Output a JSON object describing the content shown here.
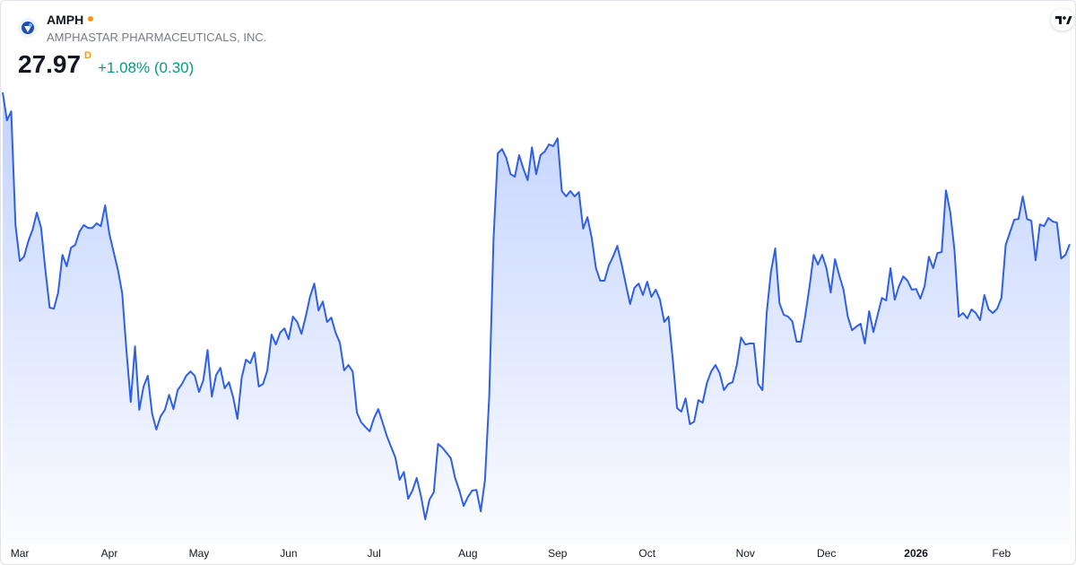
{
  "chart_data": {
    "type": "line",
    "title": "AMPH",
    "subtitle": "AMPHASTAR PHARMACEUTICALS, INC.",
    "price": "27.97",
    "interval": "D",
    "change": "+1.08% (0.30)",
    "color": "#2f5fe6",
    "categories": [
      null,
      null,
      null,
      null,
      "Mar",
      null,
      null,
      null,
      null,
      null,
      null,
      null,
      null,
      null,
      null,
      null,
      null,
      null,
      null,
      null,
      null,
      null,
      null,
      null,
      null,
      "Apr",
      null,
      null,
      null,
      null,
      null,
      null,
      null,
      null,
      null,
      null,
      null,
      null,
      null,
      null,
      null,
      null,
      null,
      null,
      null,
      null,
      "May",
      null,
      null,
      null,
      null,
      null,
      null,
      null,
      null,
      null,
      null,
      null,
      null,
      null,
      null,
      null,
      null,
      null,
      null,
      null,
      null,
      "Jun",
      null,
      null,
      null,
      null,
      null,
      null,
      null,
      null,
      null,
      null,
      null,
      null,
      null,
      null,
      null,
      null,
      null,
      null,
      null,
      "Jul",
      null,
      null,
      null,
      null,
      null,
      null,
      null,
      null,
      null,
      null,
      null,
      null,
      null,
      null,
      null,
      null,
      null,
      null,
      null,
      null,
      null,
      "Aug",
      null,
      null,
      null,
      null,
      null,
      null,
      null,
      null,
      null,
      null,
      null,
      null,
      null,
      null,
      null,
      null,
      null,
      null,
      null,
      null,
      "Sep",
      null,
      null,
      null,
      null,
      null,
      null,
      null,
      null,
      null,
      null,
      null,
      null,
      null,
      null,
      null,
      null,
      null,
      null,
      null,
      null,
      "Oct",
      null,
      null,
      null,
      null,
      null,
      null,
      null,
      null,
      null,
      null,
      null,
      null,
      null,
      null,
      null,
      null,
      null,
      null,
      null,
      null,
      null,
      null,
      "Nov",
      null,
      null,
      null,
      null,
      null,
      null,
      null,
      null,
      null,
      null,
      null,
      null,
      null,
      null,
      null,
      null,
      null,
      null,
      "Dec",
      null,
      null,
      null,
      null,
      null,
      null,
      null,
      null,
      null,
      null,
      null,
      null,
      null,
      null,
      null,
      null,
      null,
      null,
      null,
      null,
      "2026",
      null,
      null,
      null,
      null,
      null,
      null,
      null,
      null,
      null,
      null,
      null,
      null,
      null,
      null,
      null,
      null,
      null,
      null,
      null,
      "Feb",
      null,
      null,
      null,
      null,
      null,
      null,
      null,
      null,
      null,
      null,
      null,
      null,
      null,
      null,
      null,
      null
    ],
    "values": [
      32.2,
      31.42,
      31.67,
      28.5,
      27.5,
      27.62,
      28.05,
      28.37,
      28.85,
      28.42,
      27.25,
      26.2,
      26.17,
      26.62,
      27.67,
      27.35,
      27.87,
      27.95,
      28.32,
      28.5,
      28.42,
      28.42,
      28.55,
      28.47,
      29.05,
      28.25,
      27.75,
      27.25,
      26.6,
      25,
      23.57,
      25.12,
      23.35,
      24,
      24.3,
      23.25,
      22.8,
      23.17,
      23.35,
      23.77,
      23.37,
      23.9,
      24.07,
      24.3,
      24.42,
      24.3,
      23.85,
      24.17,
      25.02,
      23.72,
      24.32,
      24.52,
      23.95,
      24.12,
      23.7,
      23.1,
      24.25,
      24.75,
      24.65,
      24.95,
      24,
      24.07,
      24.45,
      25.45,
      25.17,
      25.5,
      25.62,
      25.32,
      25.95,
      25.8,
      25.47,
      25.95,
      26.5,
      26.87,
      26.12,
      26.37,
      25.8,
      25.92,
      25.5,
      25.22,
      24.45,
      24.6,
      24.42,
      23.27,
      23,
      22.87,
      22.75,
      23.12,
      23.37,
      23,
      22.62,
      22.32,
      22.02,
      21.4,
      21.62,
      20.87,
      21.1,
      21.45,
      20.95,
      20.3,
      20.85,
      21.05,
      22.4,
      22.3,
      22.15,
      22,
      21.45,
      21.1,
      20.67,
      20.92,
      21.1,
      21.12,
      20.52,
      21.4,
      23.75,
      28.12,
      30.5,
      30.62,
      30.37,
      29.92,
      29.85,
      30.45,
      30.07,
      29.75,
      30.67,
      29.92,
      30.45,
      30.55,
      30.75,
      30.7,
      30.92,
      29.45,
      29.3,
      29.45,
      29.3,
      29.42,
      28.4,
      28.72,
      28.15,
      27.3,
      26.95,
      26.95,
      27.37,
      27.62,
      27.92,
      27.42,
      26.85,
      26.3,
      26.75,
      26.87,
      26.55,
      26.92,
      26.5,
      26.7,
      26.42,
      25.8,
      25.95,
      24.75,
      23.4,
      23.3,
      23.67,
      22.95,
      23.02,
      23.62,
      23.55,
      24.1,
      24.42,
      24.6,
      24.37,
      23.9,
      24.07,
      24.12,
      24.6,
      25.37,
      25.17,
      25.2,
      25.2,
      24.07,
      23.9,
      26.05,
      27.2,
      27.85,
      26.32,
      26,
      25.95,
      25.82,
      25.25,
      25.25,
      25.95,
      26.75,
      27.67,
      27.4,
      27.67,
      27.3,
      26.62,
      27.55,
      27.1,
      26.7,
      25.95,
      25.57,
      25.67,
      25.75,
      25.2,
      26.1,
      25.52,
      26,
      26.47,
      26.4,
      27.3,
      26.42,
      26.8,
      27.07,
      26.95,
      26.7,
      26.72,
      26.45,
      26.8,
      27.62,
      27.3,
      27.72,
      27.75,
      29.47,
      28.87,
      27.8,
      25.95,
      26.05,
      25.9,
      26.15,
      26.05,
      25.85,
      26.55,
      26.15,
      26.05,
      26.17,
      26.47,
      27.95,
      28.3,
      28.65,
      28.67,
      29.3,
      28.67,
      28.62,
      27.52,
      28.52,
      28.47,
      28.7,
      28.6,
      28.57,
      27.57,
      27.67,
      27.97
    ]
  }
}
